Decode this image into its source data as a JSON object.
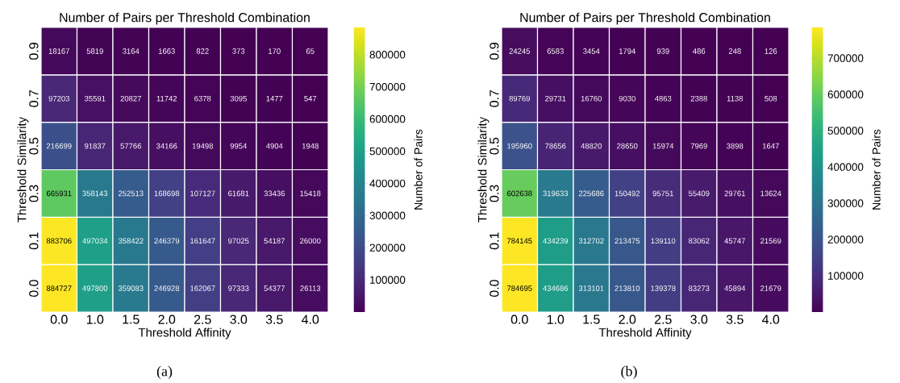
{
  "chart_data": [
    {
      "type": "heatmap",
      "title": "Number of Pairs per Threshold Combination",
      "xlabel": "Threshold Affinity",
      "ylabel": "Threshold Similarity",
      "clabel": "Number of Pairs",
      "categories": [
        "0.0",
        "1.0",
        "1.5",
        "2.0",
        "2.5",
        "3.0",
        "3.5",
        "4.0"
      ],
      "y_categories": [
        "0.9",
        "0.7",
        "0.5",
        "0.3",
        "0.1",
        "0.0"
      ],
      "cells": [
        [
          18167,
          5819,
          3164,
          1663,
          822,
          373,
          170,
          65
        ],
        [
          97203,
          35591,
          20827,
          11742,
          6378,
          3095,
          1477,
          547
        ],
        [
          216699,
          91837,
          57766,
          34166,
          19498,
          9954,
          4904,
          1948
        ],
        [
          665931,
          358143,
          252513,
          168698,
          107127,
          61681,
          33436,
          15418
        ],
        [
          883706,
          497034,
          358422,
          246379,
          161647,
          97025,
          54187,
          26000
        ],
        [
          884727,
          497800,
          359083,
          246928,
          162067,
          97333,
          54377,
          26113
        ]
      ],
      "data_labels": true,
      "clim": [
        65,
        884727
      ],
      "cticks": [
        100000,
        200000,
        300000,
        400000,
        500000,
        600000,
        700000,
        800000
      ],
      "annotations": [
        "(a)"
      ]
    },
    {
      "type": "heatmap",
      "title": "Number of Pairs per Threshold Combination",
      "xlabel": "Threshold Affinity",
      "ylabel": "Threshold Similarity",
      "clabel": "Number of Pairs",
      "categories": [
        "0.0",
        "1.0",
        "1.5",
        "2.0",
        "2.5",
        "3.0",
        "3.5",
        "4.0"
      ],
      "y_categories": [
        "0.9",
        "0.7",
        "0.5",
        "0.3",
        "0.1",
        "0.0"
      ],
      "cells": [
        [
          24245,
          6583,
          3454,
          1794,
          939,
          486,
          248,
          126
        ],
        [
          89769,
          29731,
          16760,
          9030,
          4863,
          2388,
          1138,
          508
        ],
        [
          195960,
          78656,
          48820,
          28650,
          15974,
          7969,
          3898,
          1647
        ],
        [
          602638,
          319633,
          225686,
          150492,
          95751,
          55409,
          29761,
          13624
        ],
        [
          784145,
          434239,
          312702,
          213475,
          139110,
          83062,
          45747,
          21569
        ],
        [
          784695,
          434686,
          313101,
          213810,
          139378,
          83273,
          45894,
          21679
        ]
      ],
      "data_labels": true,
      "clim": [
        126,
        784695
      ],
      "cticks": [
        100000,
        200000,
        300000,
        400000,
        500000,
        600000,
        700000
      ],
      "annotations": [
        "(b)"
      ]
    }
  ]
}
